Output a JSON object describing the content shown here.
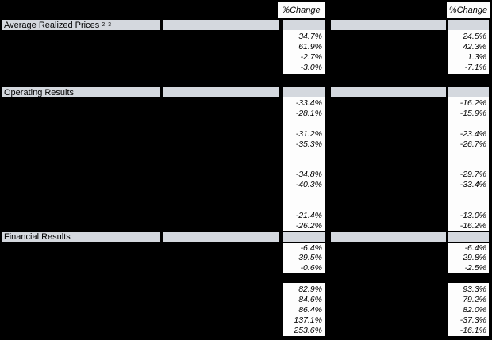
{
  "colors": {
    "background": "#000000",
    "section_row_bg": "#d4d8de",
    "value_cell_bg": "#fdfdfd",
    "text": "#000000"
  },
  "header": {
    "change_label": "%Change"
  },
  "sections": [
    {
      "label": "Average Realized Prices",
      "footnote": "2 3",
      "blocks": [
        {
          "rows": [
            [
              "34.7%",
              "24.5%"
            ],
            [
              "61.9%",
              "42.3%"
            ],
            [
              "-2.7%",
              "1.3%"
            ],
            [
              "-3.0%",
              "-7.1%"
            ]
          ]
        }
      ]
    },
    {
      "label": "Operating Results",
      "footnote": "",
      "blocks": [
        {
          "rows": [
            [
              "-33.4%",
              "-16.2%"
            ],
            [
              "-28.1%",
              "-15.9%"
            ],
            [
              "",
              ""
            ],
            [
              "-31.2%",
              "-23.4%"
            ],
            [
              "-35.3%",
              "-26.7%"
            ],
            [
              "",
              ""
            ],
            [
              "",
              ""
            ],
            [
              "-34.8%",
              "-29.7%"
            ],
            [
              "-40.3%",
              "-33.4%"
            ],
            [
              "",
              ""
            ],
            [
              "",
              ""
            ],
            [
              "-21.4%",
              "-13.0%"
            ],
            [
              "-26.2%",
              "-16.2%"
            ]
          ]
        }
      ]
    },
    {
      "label": "Financial Results",
      "footnote": "",
      "blocks": [
        {
          "rows": [
            [
              "-6.4%",
              "-6.4%"
            ],
            [
              "39.5%",
              "29.8%"
            ],
            [
              "-0.6%",
              "-2.5%"
            ]
          ]
        },
        {
          "rows": [
            [
              "82.9%",
              "93.3%"
            ],
            [
              "84.6%",
              "79.2%"
            ],
            [
              "86.4%",
              "82.0%"
            ],
            [
              "137.1%",
              "-37.3%"
            ],
            [
              "253.6%",
              "-16.1%"
            ]
          ]
        }
      ]
    }
  ]
}
